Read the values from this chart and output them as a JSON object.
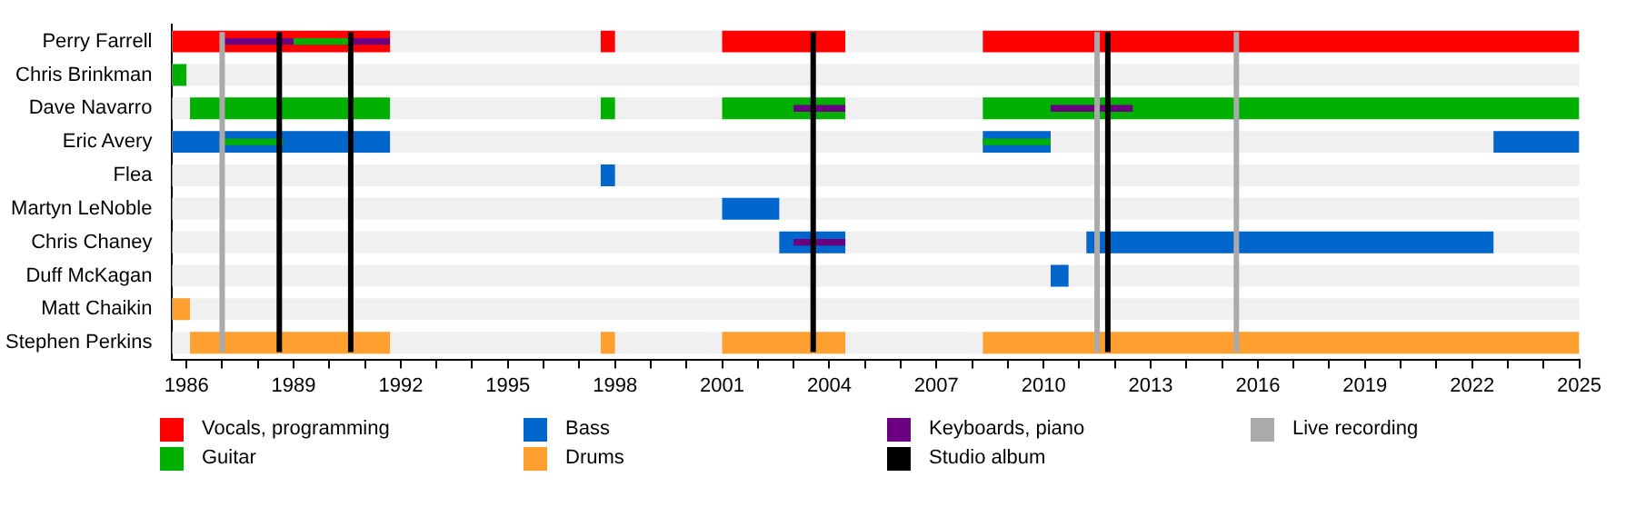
{
  "chart_data": {
    "type": "bar",
    "orientation": "horizontal",
    "categories": [
      "Perry Farrell",
      "Chris Brinkman",
      "Dave Navarro",
      "Eric Avery",
      "Flea",
      "Martyn LeNoble",
      "Chris Chaney",
      "Duff McKagan",
      "Matt Chaikin",
      "Stephen Perkins"
    ],
    "series": [
      {
        "name": "Vocals, programming",
        "color": "#ff0000",
        "base": [
          1985.6,
          null,
          null,
          null,
          null,
          null,
          null,
          null,
          null,
          null
        ],
        "values": [
          6.1,
          null,
          null,
          null,
          null,
          null,
          null,
          null,
          null,
          null
        ]
      },
      {
        "color": "#ff0000",
        "base": [
          1997.6,
          null,
          null,
          null,
          null,
          null,
          null,
          null,
          null,
          null
        ],
        "values": [
          0.4,
          null,
          null,
          null,
          null,
          null,
          null,
          null,
          null,
          null
        ]
      },
      {
        "color": "#ff0000",
        "base": [
          2001.0,
          null,
          null,
          null,
          null,
          null,
          null,
          null,
          null,
          null
        ],
        "values": [
          3.45,
          null,
          null,
          null,
          null,
          null,
          null,
          null,
          null,
          null
        ]
      },
      {
        "color": "#ff0000",
        "base": [
          2008.3,
          null,
          null,
          null,
          null,
          null,
          null,
          null,
          null,
          null
        ],
        "values": [
          16.7,
          null,
          null,
          null,
          null,
          null,
          null,
          null,
          null,
          null
        ]
      },
      {
        "name": "Guitar",
        "color": "#00b000",
        "base": [
          null,
          1985.6,
          1986.1,
          null,
          null,
          null,
          null,
          null,
          null,
          null
        ],
        "values": [
          null,
          0.4,
          5.6,
          null,
          null,
          null,
          null,
          null,
          null,
          null
        ]
      },
      {
        "color": "#00b000",
        "base": [
          null,
          null,
          1997.6,
          null,
          null,
          null,
          null,
          null,
          null,
          null
        ],
        "values": [
          null,
          null,
          0.4,
          null,
          null,
          null,
          null,
          null,
          null,
          null
        ]
      },
      {
        "color": "#00b000",
        "base": [
          null,
          null,
          2001.0,
          null,
          null,
          null,
          null,
          null,
          null,
          null
        ],
        "values": [
          null,
          null,
          3.45,
          null,
          null,
          null,
          null,
          null,
          null,
          null
        ]
      },
      {
        "color": "#00b000",
        "base": [
          null,
          null,
          2008.3,
          null,
          null,
          null,
          null,
          null,
          null,
          null
        ],
        "values": [
          null,
          null,
          16.7,
          null,
          null,
          null,
          null,
          null,
          null,
          null
        ]
      },
      {
        "name": "Bass",
        "color": "#0066cc",
        "base": [
          null,
          null,
          null,
          1985.6,
          1997.6,
          2001.0,
          2002.6,
          2010.2,
          null,
          null
        ],
        "values": [
          null,
          null,
          null,
          6.1,
          0.4,
          1.6,
          1.85,
          0.5,
          null,
          null
        ]
      },
      {
        "color": "#0066cc",
        "base": [
          null,
          null,
          null,
          2008.3,
          null,
          null,
          2011.2,
          null,
          null,
          null
        ],
        "values": [
          null,
          null,
          null,
          1.9,
          null,
          null,
          11.4,
          null,
          null,
          null
        ]
      },
      {
        "color": "#0066cc",
        "base": [
          null,
          null,
          null,
          2022.6,
          null,
          null,
          null,
          null,
          null,
          null
        ],
        "values": [
          null,
          null,
          null,
          2.4,
          null,
          null,
          null,
          null,
          null,
          null
        ]
      },
      {
        "name": "Drums",
        "color": "#ffa030",
        "base": [
          null,
          null,
          null,
          null,
          null,
          null,
          null,
          null,
          1985.6,
          1986.1
        ],
        "values": [
          null,
          null,
          null,
          null,
          null,
          null,
          null,
          null,
          0.5,
          5.6
        ]
      },
      {
        "color": "#ffa030",
        "base": [
          null,
          null,
          null,
          null,
          null,
          null,
          null,
          null,
          null,
          1997.6
        ],
        "values": [
          null,
          null,
          null,
          null,
          null,
          null,
          null,
          null,
          null,
          0.4
        ]
      },
      {
        "color": "#ffa030",
        "base": [
          null,
          null,
          null,
          null,
          null,
          null,
          null,
          null,
          null,
          2001.0
        ],
        "values": [
          null,
          null,
          null,
          null,
          null,
          null,
          null,
          null,
          null,
          3.45
        ]
      },
      {
        "color": "#ffa030",
        "base": [
          null,
          null,
          null,
          null,
          null,
          null,
          null,
          null,
          null,
          2008.3
        ],
        "values": [
          null,
          null,
          null,
          null,
          null,
          null,
          null,
          null,
          null,
          16.7
        ]
      },
      {
        "color": "#00b000",
        "base": [
          1989.0,
          null,
          null,
          1987.0,
          null,
          null,
          null,
          null,
          null,
          null
        ],
        "values": [
          1.6,
          null,
          null,
          1.7,
          null,
          null,
          null,
          null,
          null,
          null
        ]
      },
      {
        "color": "#00b000",
        "base": [
          null,
          null,
          null,
          2008.3,
          null,
          null,
          null,
          null,
          null,
          null
        ],
        "values": [
          null,
          null,
          null,
          1.9,
          null,
          null,
          null,
          null,
          null,
          null
        ]
      },
      {
        "name": "Keyboards, piano",
        "color": "#6a0080",
        "base": [
          1987.0,
          null,
          2003.0,
          null,
          null,
          null,
          2003.0,
          null,
          null,
          null
        ],
        "values": [
          4.7,
          null,
          1.45,
          null,
          null,
          null,
          1.45,
          null,
          null,
          null
        ]
      },
      {
        "color": "#6a0080",
        "base": [
          null,
          null,
          2010.2,
          null,
          null,
          null,
          null,
          null,
          null,
          null
        ],
        "values": [
          null,
          null,
          2.3,
          null,
          null,
          null,
          null,
          null,
          null,
          null
        ]
      }
    ],
    "ref_lines": [
      {
        "axis": "x",
        "value": 1988.6,
        "label": "Studio album",
        "color": "#000000"
      },
      {
        "axis": "x",
        "value": 1990.6,
        "color": "#000000"
      },
      {
        "axis": "x",
        "value": 2003.55,
        "color": "#000000"
      },
      {
        "axis": "x",
        "value": 2011.8,
        "color": "#000000"
      },
      {
        "axis": "x",
        "value": 1987.0,
        "label": "Live recording",
        "color": "#aaaaaa"
      },
      {
        "axis": "x",
        "value": 2011.5,
        "color": "#aaaaaa"
      },
      {
        "axis": "x",
        "value": 2015.4,
        "color": "#aaaaaa"
      }
    ],
    "xlim": [
      1985.6,
      2025
    ],
    "xticks": [
      1986,
      {
        "value": 1987,
        "label": null
      },
      {
        "value": 1988,
        "label": null
      },
      1989,
      {
        "value": 1990,
        "label": null
      },
      {
        "value": 1991,
        "label": null
      },
      1992,
      {
        "value": 1993,
        "label": null
      },
      {
        "value": 1994,
        "label": null
      },
      1995,
      {
        "value": 1996,
        "label": null
      },
      {
        "value": 1997,
        "label": null
      },
      1998,
      {
        "value": 1999,
        "label": null
      },
      {
        "value": 2000,
        "label": null
      },
      2001,
      {
        "value": 2002,
        "label": null
      },
      {
        "value": 2003,
        "label": null
      },
      2004,
      {
        "value": 2005,
        "label": null
      },
      {
        "value": 2006,
        "label": null
      },
      2007,
      {
        "value": 2008,
        "label": null
      },
      {
        "value": 2009,
        "label": null
      },
      2010,
      {
        "value": 2011,
        "label": null
      },
      {
        "value": 2012,
        "label": null
      },
      2013,
      {
        "value": 2014,
        "label": null
      },
      {
        "value": 2015,
        "label": null
      },
      2016,
      {
        "value": 2017,
        "label": null
      },
      {
        "value": 2018,
        "label": null
      },
      2019,
      {
        "value": 2020,
        "label": null
      },
      {
        "value": 2021,
        "label": null
      },
      2022,
      {
        "value": 2023,
        "label": null
      },
      {
        "value": 2024,
        "label": null
      },
      2025
    ],
    "legend": "bottom"
  }
}
